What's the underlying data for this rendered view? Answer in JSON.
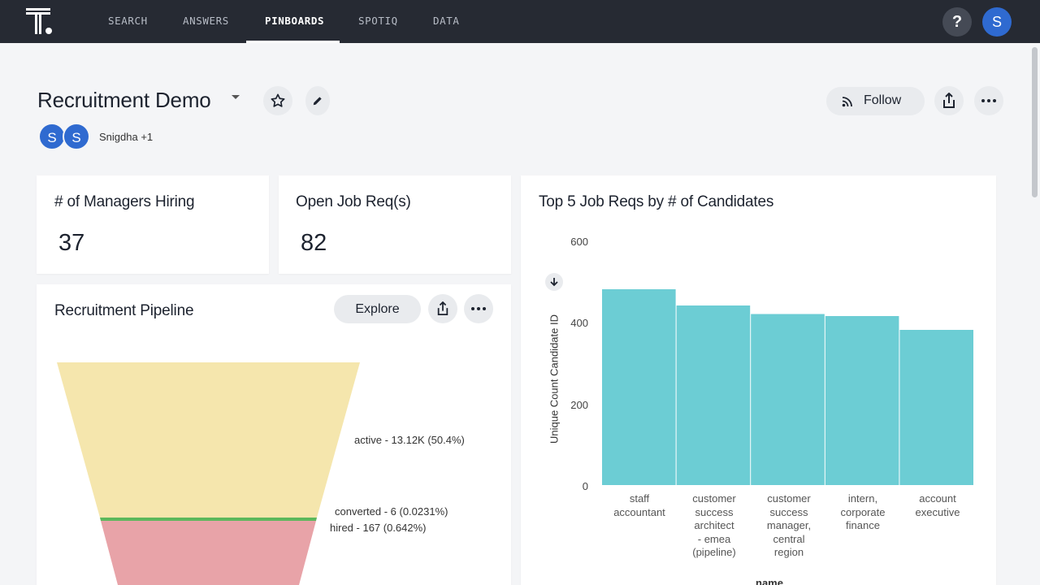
{
  "nav": {
    "items": [
      "SEARCH",
      "ANSWERS",
      "PINBOARDS",
      "SPOTIQ",
      "DATA"
    ],
    "active": "PINBOARDS",
    "help_label": "?",
    "user_initial": "S"
  },
  "pinboard": {
    "title": "Recruitment Demo",
    "authors_label": "Snigdha +1",
    "author_initials": [
      "S",
      "S"
    ],
    "follow_label": "Follow"
  },
  "kpis": [
    {
      "title": "# of Managers Hiring",
      "value": "37"
    },
    {
      "title": "Open Job Req(s)",
      "value": "82"
    }
  ],
  "pipeline": {
    "title": "Recruitment Pipeline",
    "explore_label": "Explore",
    "stages": [
      {
        "label": "active - 13.12K (50.4%)",
        "color": "#f5e6ad"
      },
      {
        "label": "converted - 6 (0.0231%)",
        "color": "#5cb85c"
      },
      {
        "label": "hired - 167 (0.642%)",
        "color": "#e8a3a8"
      }
    ]
  },
  "chart_data": {
    "type": "bar",
    "title": "Top 5 Job Reqs by # of Candidates",
    "xlabel": "name",
    "ylabel": "Unique Count Candidate ID",
    "ylim": [
      0,
      600
    ],
    "yticks": [
      "600",
      "400",
      "200",
      "0"
    ],
    "categories": [
      "staff accountant",
      "customer success architect - emea (pipeline)",
      "customer success manager, central region",
      "intern, corporate finance",
      "account executive"
    ],
    "category_lines": [
      [
        "staff",
        "accountant"
      ],
      [
        "customer",
        "success",
        "architect",
        "- emea",
        "(pipeline)"
      ],
      [
        "customer",
        "success",
        "manager,",
        "central",
        "region"
      ],
      [
        "intern,",
        "corporate",
        "finance"
      ],
      [
        "account",
        "executive"
      ]
    ],
    "values": [
      482,
      442,
      421,
      416,
      382
    ],
    "bar_color": "#6ccdd4"
  }
}
